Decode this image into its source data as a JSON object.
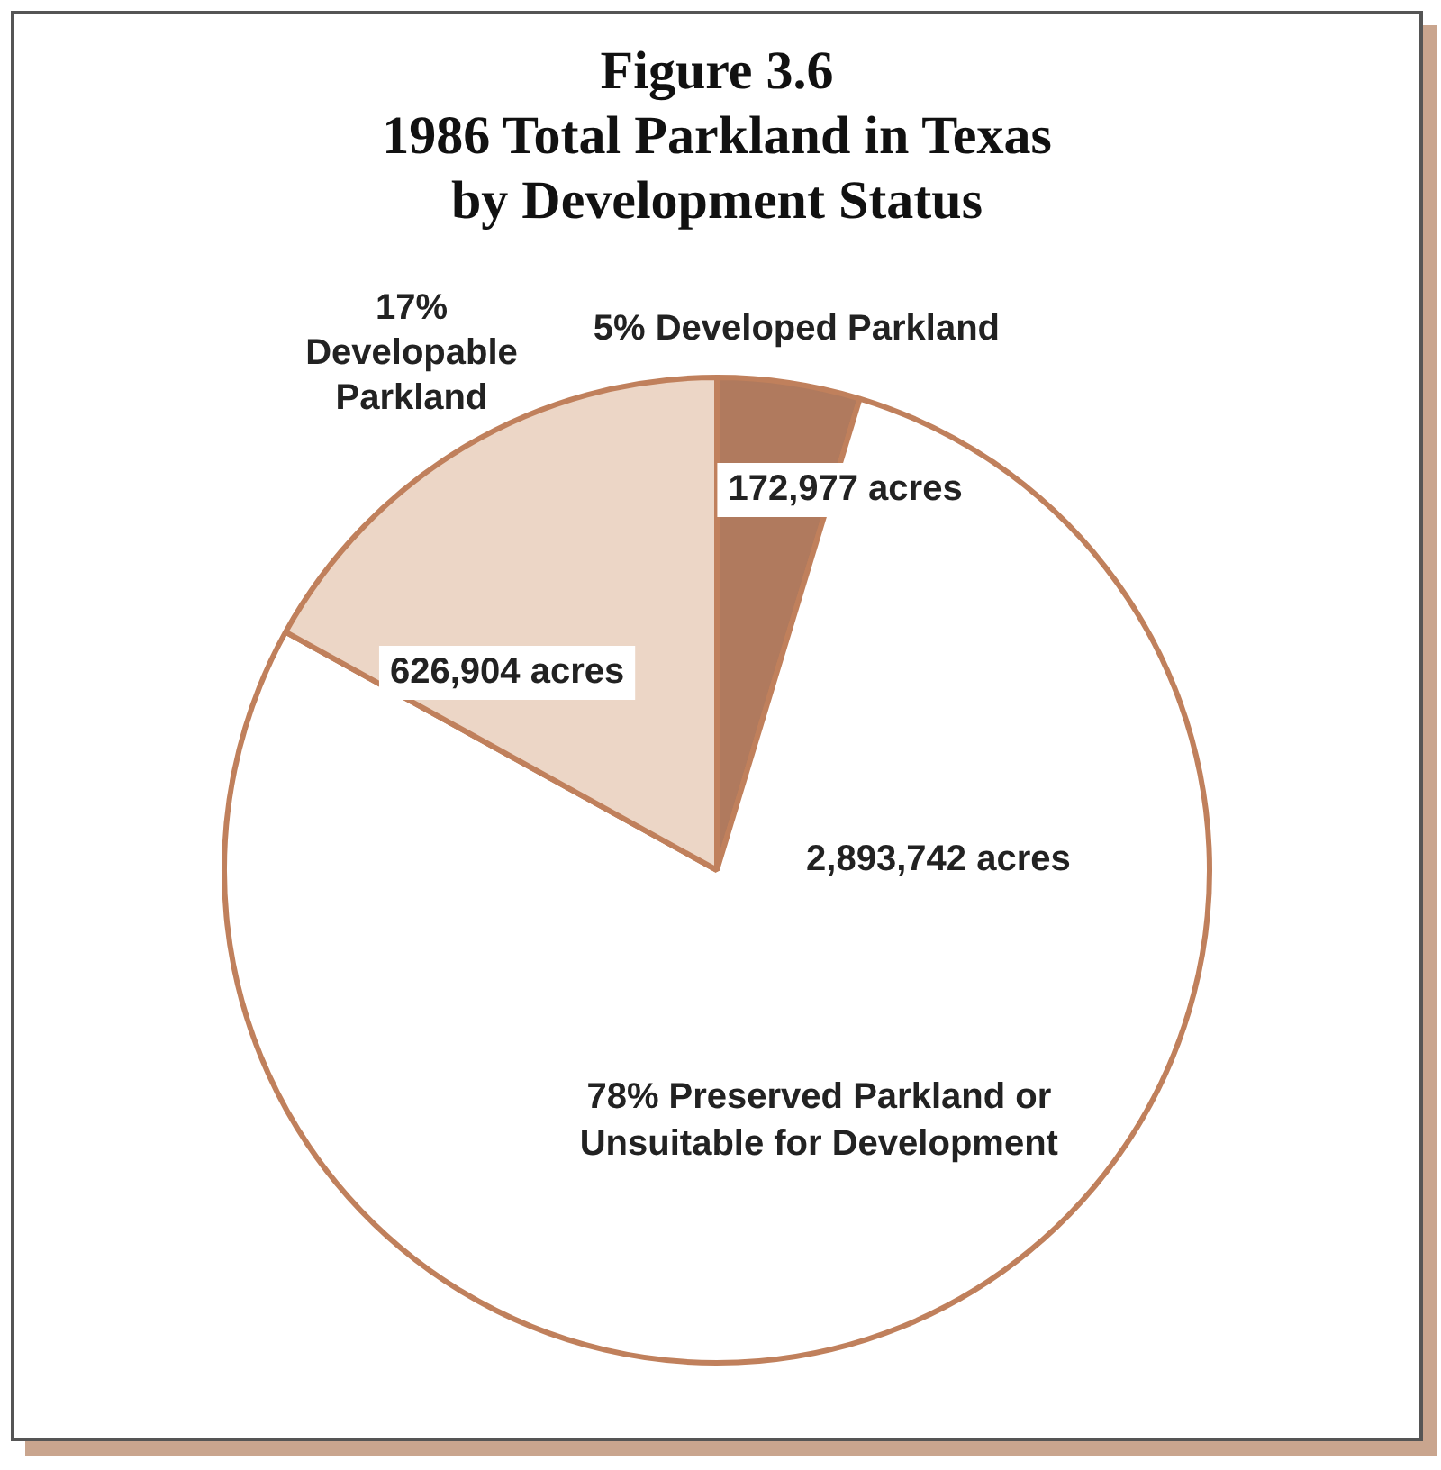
{
  "chart_data": {
    "type": "pie",
    "title": "Figure 3.6\n1986 Total Parkland in Texas\nby Development Status",
    "categories": [
      "5% Developed Parkland",
      "78% Preserved Parkland or Unsuitable for Development",
      "17% Developable Parkland"
    ],
    "values": [
      172977,
      2893742,
      626904
    ],
    "value_labels": [
      "172,977 acres",
      "2,893,742 acres",
      "626,904 acres"
    ],
    "colors": [
      "#b07a5e",
      "#ffffff",
      "#ecd6c6"
    ],
    "legend": false
  }
}
